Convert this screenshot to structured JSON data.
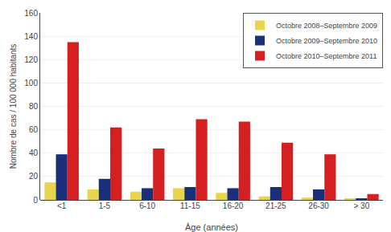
{
  "chart_data": {
    "type": "bar",
    "xlabel": "Âge (années)",
    "ylabel": "Nombre de cas / 100 000 habitants",
    "categories": [
      "<1",
      "1-5",
      "6-10",
      "11-15",
      "16-20",
      "21-25",
      "26-30",
      "> 30"
    ],
    "series": [
      {
        "name": "Octobre 2008–Septembre 2009",
        "color": "#e8d44d",
        "values": [
          15,
          9,
          7,
          10,
          6,
          3,
          2,
          1
        ]
      },
      {
        "name": "Octobre 2009–Septembre 2010",
        "color": "#1a2f7a",
        "values": [
          39,
          18,
          10,
          11,
          10,
          11,
          9,
          1
        ]
      },
      {
        "name": "Octobre 2010–Septembre 2011",
        "color": "#d42020",
        "values": [
          135,
          62,
          44,
          69,
          67,
          49,
          39,
          5
        ]
      }
    ],
    "ylim": [
      0,
      160
    ],
    "yticks": [
      0,
      20,
      40,
      60,
      80,
      100,
      120,
      140,
      160
    ],
    "grid": true,
    "legend": "upper right"
  }
}
